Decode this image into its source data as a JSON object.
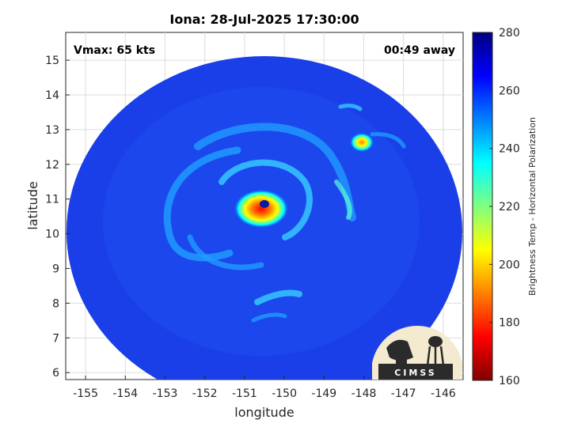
{
  "chart_data": {
    "type": "heatmap",
    "title": "Iona: 28-Jul-2025 17:30:00",
    "xlabel": "longitude",
    "ylabel": "latitude",
    "xlim": [
      -155.5,
      -145.5
    ],
    "ylim": [
      5.8,
      15.8
    ],
    "x_ticks": [
      -155,
      -154,
      -153,
      -152,
      -151,
      -150,
      -149,
      -148,
      -147,
      -146
    ],
    "y_ticks": [
      6,
      7,
      8,
      9,
      10,
      11,
      12,
      13,
      14,
      15
    ],
    "grid": true,
    "annotations": {
      "vmax": "Vmax: 65 kts",
      "away": "00:49 away"
    },
    "colorbar": {
      "label": "Brightness Temp - Horizontal Polarization",
      "range": [
        160,
        280
      ],
      "ticks": [
        280,
        260,
        240,
        220,
        200,
        180,
        160
      ],
      "colormap": [
        "#800000",
        "#ff0000",
        "#ff8000",
        "#ffff00",
        "#80ff80",
        "#00ffff",
        "#0080ff",
        "#0000ff",
        "#000080"
      ]
    },
    "swath": {
      "background_color": "#1a3fe8",
      "center_lon": -150.6,
      "center_lat": 10.8
    },
    "features": [
      {
        "name": "eye",
        "lon": -150.5,
        "lat": 10.75,
        "value": 262
      },
      {
        "name": "eyewall",
        "lon": -150.55,
        "lat": 10.6,
        "value": 190
      },
      {
        "name": "convective cell",
        "lon": -147.9,
        "lat": 12.55,
        "value": 205
      }
    ],
    "logo": "CIMSS"
  }
}
